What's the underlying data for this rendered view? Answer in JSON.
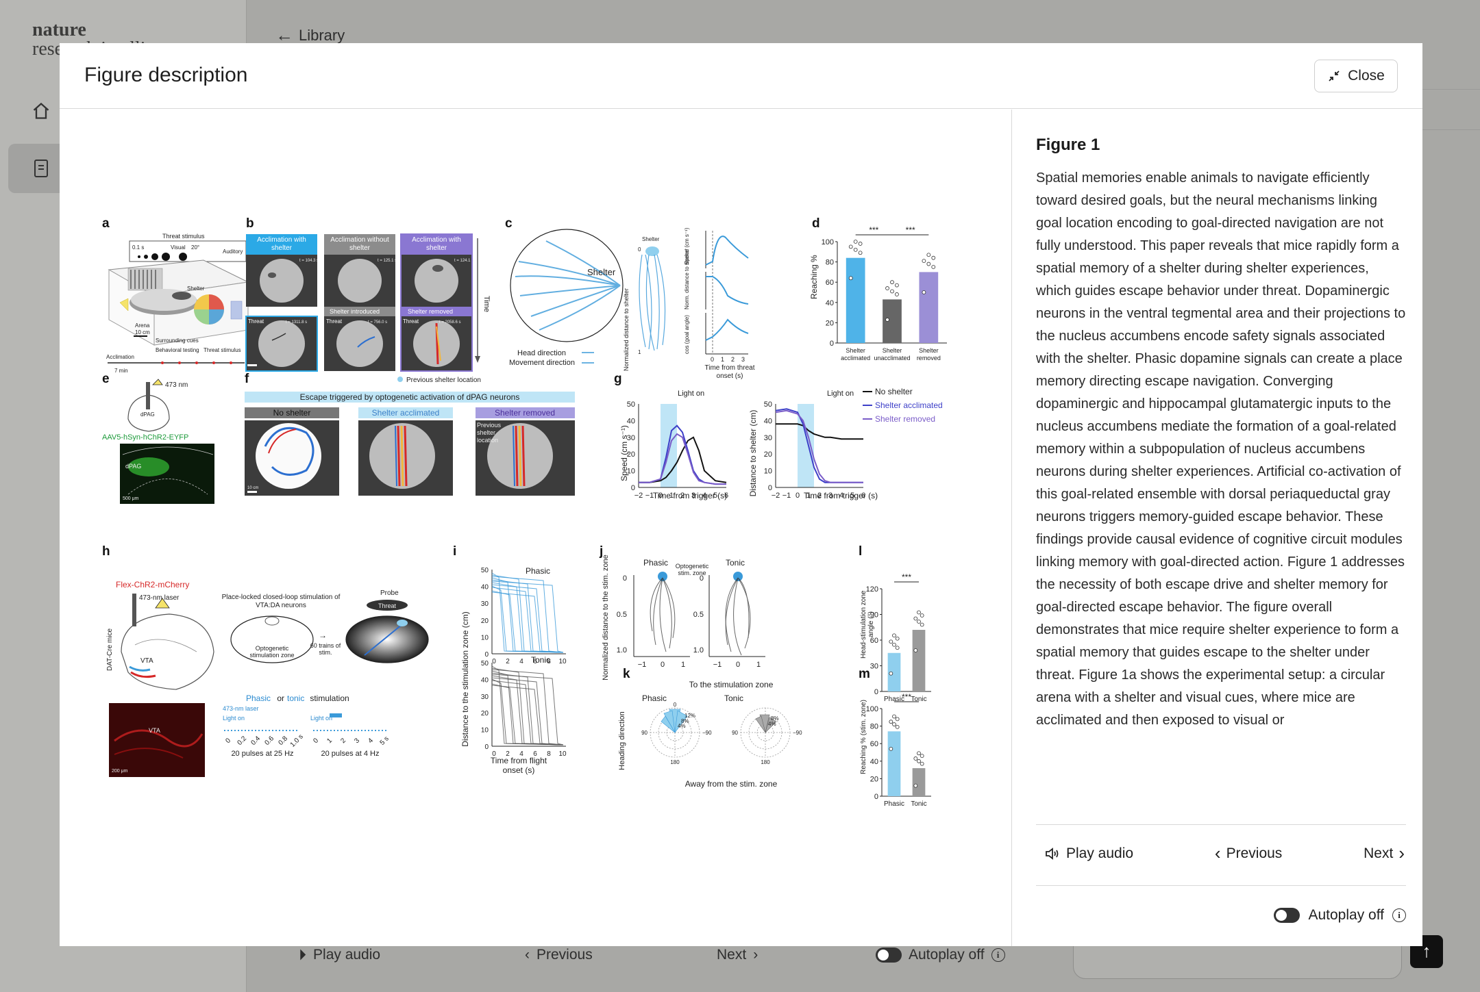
{
  "background": {
    "logo_line1": "nature",
    "logo_line2": "research intelligence",
    "back_label": "Library",
    "bottom": {
      "play_audio": "Play audio",
      "previous": "Previous",
      "next": "Next",
      "autoplay": "Autoplay off"
    }
  },
  "modal": {
    "title": "Figure description",
    "close_label": "Close",
    "figure_title": "Figure 1",
    "description": "Spatial memories enable animals to navigate efficiently toward desired goals, but the neural mechanisms linking goal location encoding to goal-directed navigation are not fully understood. This paper reveals that mice rapidly form a spatial memory of a shelter during shelter experiences, which guides escape behavior under threat. Dopaminergic neurons in the ventral tegmental area and their projections to the nucleus accumbens encode safety signals associated with the shelter. Phasic dopamine signals can create a place memory directing escape navigation. Converging dopaminergic and hippocampal glutamatergic inputs to the nucleus accumbens mediate the formation of a goal-related memory within a subpopulation of nucleus accumbens neurons during shelter experiences. Artificial co-activation of this goal-related ensemble with dorsal periaqueductal gray neurons triggers memory-guided escape behavior. These findings provide causal evidence of cognitive circuit modules linking memory with goal-directed action. Figure 1 addresses the necessity of both escape drive and shelter memory for goal-directed escape behavior. The figure overall demonstrates that mice require shelter experience to form a spatial memory that guides escape to the shelter under threat. Figure 1a shows the experimental setup: a circular arena with a shelter and visual cues, where mice are acclimated and then exposed to visual or",
    "controls": {
      "play_audio": "Play audio",
      "previous": "Previous",
      "next": "Next",
      "autoplay": "Autoplay off"
    }
  },
  "figure": {
    "panel_a": {
      "label": "a",
      "threat_stimulus": "Threat stimulus",
      "visual": "Visual",
      "auditory": "Auditory",
      "time_01": "0.1 s",
      "deg20": "20°",
      "shelter": "Shelter",
      "arena": "Arena",
      "scale": "10 cm",
      "surrounding_cues": "Surrounding cues",
      "acclimation": "Acclimation",
      "behavioral_testing": "Behavioral testing",
      "threat_stim": "Threat stimulus",
      "seven_min": "7 min"
    },
    "panel_b": {
      "label": "b",
      "col1": "Acclimation with shelter",
      "col2": "Acclimation without shelter",
      "col3": "Acclimation with shelter",
      "shelter_introduced": "Shelter introduced",
      "shelter_removed": "Shelter removed",
      "threat": "Threat",
      "time": "Time",
      "previous_location": "Previous shelter location",
      "t1": "t = 104.3 s",
      "t2": "t = 125.1 s",
      "t3": "t = 124.1 s",
      "t4": "t = 1311.8 s",
      "t5": "t = 756.0 s",
      "t6": "t = 2058.6 s",
      "scale": "10 cm",
      "speed": "Speed (cm s⁻¹)"
    },
    "panel_c": {
      "label": "c",
      "shelter": "Shelter",
      "head_direction": "Head direction",
      "movement_direction": "Movement direction",
      "y_norm_dist": "Normalized distance to shelter",
      "shelter_top": "Shelter",
      "speed_label": "Speed (cm s⁻¹)",
      "norm_label": "Norm. distance to shelter",
      "cos_label": "cos (goal angle)",
      "x_label": "Time from threat onset (s)",
      "x_ticks": [
        "0",
        "1",
        "2",
        "3"
      ]
    },
    "panel_d": {
      "label": "d",
      "y_label": "Reaching %",
      "categories": [
        "Shelter acclimated",
        "Shelter unacclimated",
        "Shelter removed"
      ],
      "sig": "***",
      "y_ticks": [
        "0",
        "20",
        "40",
        "60",
        "80",
        "100"
      ]
    },
    "panel_e": {
      "label": "e",
      "wavelength": "473 nm",
      "virus": "AAV5-hSyn-hChR2-EYFP",
      "region": "dPAG",
      "scale": "500 μm"
    },
    "panel_f": {
      "label": "f",
      "title": "Escape triggered by optogenetic activation of dPAG neurons",
      "col1": "No shelter",
      "col2": "Shelter acclimated",
      "col3": "Shelter removed",
      "prev_loc": "Previous shelter location",
      "scale": "10 cm"
    },
    "panel_g": {
      "label": "g",
      "light_on": "Light on",
      "y1": "Speed (cm s⁻¹)",
      "y2": "Distance to shelter (cm)",
      "x_label": "Time from trigger (s)",
      "legend": [
        "No shelter",
        "Shelter acclimated",
        "Shelter removed"
      ],
      "y_ticks": [
        "0",
        "10",
        "20",
        "30",
        "40",
        "50"
      ],
      "x_ticks": [
        "−2",
        "−1",
        "0",
        "1",
        "2",
        "3",
        "4",
        "5",
        "6"
      ]
    },
    "panel_h": {
      "label": "h",
      "construct": "Flex-ChR2-mCherry",
      "laser": "473-nm laser",
      "closed_loop": "Place-locked closed-loop stimulation of VTA:DA neurons",
      "probe": "Probe",
      "threat": "Threat",
      "opto_zone": "Optogenetic stimulation zone",
      "trains": "60 trains of stim.",
      "mouse": "DAT-Cre mice",
      "vta": "VTA",
      "phasic": "Phasic",
      "or": " or ",
      "tonic": "tonic",
      "stimulation": " stimulation",
      "laser2": "473-nm laser",
      "light_on": "Light on",
      "pulses1": "20 pulses at 25 Hz",
      "pulses2": "20 pulses at 4 Hz",
      "scale": "200 μm",
      "ticks1": [
        "0",
        "0.2",
        "0.4",
        "0.6",
        "0.8",
        "1.0 s"
      ],
      "ticks2": [
        "0",
        "1",
        "2",
        "3",
        "4",
        "5 s"
      ]
    },
    "panel_i": {
      "label": "i",
      "phasic": "Phasic",
      "tonic": "Tonic",
      "y_label": "Distance to the stimulation zone (cm)",
      "x_label": "Time from flight onset (s)",
      "y_ticks": [
        "0",
        "10",
        "20",
        "30",
        "40",
        "50"
      ],
      "x_ticks": [
        "0",
        "2",
        "4",
        "6",
        "8",
        "10"
      ]
    },
    "panel_j": {
      "label": "j",
      "phasic": "Phasic",
      "tonic": "Tonic",
      "opto_zone": "Optogenetic stim. zone",
      "y_label": "Normalized distance to the stim. zone",
      "y_ticks": [
        "0",
        "0.5",
        "1.0"
      ],
      "x_ticks": [
        "−1",
        "0",
        "1"
      ]
    },
    "panel_k": {
      "label": "k",
      "top": "To the stimulation zone",
      "bottom": "Away from the stim. zone",
      "phasic": "Phasic",
      "tonic": "Tonic",
      "y_label": "Heading direction",
      "pct": [
        "12%",
        "8%",
        "4%"
      ],
      "angles": [
        "0",
        "90",
        "−90",
        "180"
      ]
    },
    "panel_l": {
      "label": "l",
      "y_label": "Head-stimulation zone angle (°)",
      "sig": "***",
      "categories": [
        "Phasic",
        "Tonic"
      ],
      "y_ticks": [
        "0",
        "30",
        "60",
        "90",
        "120"
      ]
    },
    "panel_m": {
      "label": "m",
      "y_label": "Reaching % (stim. zone)",
      "sig": "***",
      "categories": [
        "Phasic",
        "Tonic"
      ],
      "y_ticks": [
        "0",
        "20",
        "40",
        "60",
        "80",
        "100"
      ]
    }
  },
  "chart_data": [
    {
      "type": "bar",
      "panel": "d",
      "ylabel": "Reaching %",
      "categories": [
        "Shelter acclimated",
        "Shelter unacclimated",
        "Shelter removed"
      ],
      "values": [
        84,
        43,
        70
      ],
      "ylim": [
        0,
        100
      ],
      "colors": [
        "#4fb3e8",
        "#666666",
        "#9b8fd6"
      ]
    },
    {
      "type": "bar",
      "panel": "l",
      "ylabel": "Head-stimulation zone angle (°)",
      "categories": [
        "Phasic",
        "Tonic"
      ],
      "values": [
        45,
        72
      ],
      "ylim": [
        0,
        120
      ],
      "colors": [
        "#8fcfee",
        "#9a9a9a"
      ]
    },
    {
      "type": "bar",
      "panel": "m",
      "ylabel": "Reaching % (stim. zone)",
      "categories": [
        "Phasic",
        "Tonic"
      ],
      "values": [
        74,
        32
      ],
      "ylim": [
        0,
        100
      ],
      "colors": [
        "#8fcfee",
        "#9a9a9a"
      ]
    },
    {
      "type": "line",
      "panel": "g-speed",
      "xlabel": "Time from trigger (s)",
      "ylabel": "Speed (cm s⁻¹)",
      "xlim": [
        -2,
        6
      ],
      "ylim": [
        0,
        50
      ],
      "x": [
        -2,
        -1,
        0,
        0.5,
        1,
        1.5,
        2,
        2.5,
        3,
        3.5,
        4,
        5,
        6
      ],
      "series": [
        {
          "name": "No shelter",
          "values": [
            3,
            3,
            4,
            6,
            10,
            15,
            22,
            28,
            30,
            22,
            10,
            4,
            3
          ]
        },
        {
          "name": "Shelter acclimated",
          "values": [
            3,
            3,
            5,
            18,
            34,
            37,
            33,
            22,
            10,
            5,
            3,
            2,
            2
          ]
        },
        {
          "name": "Shelter removed",
          "values": [
            3,
            3,
            5,
            15,
            28,
            32,
            30,
            20,
            9,
            4,
            3,
            2,
            2
          ]
        }
      ]
    },
    {
      "type": "line",
      "panel": "g-distance",
      "xlabel": "Time from trigger (s)",
      "ylabel": "Distance to shelter (cm)",
      "xlim": [
        -2,
        6
      ],
      "ylim": [
        0,
        50
      ],
      "x": [
        -2,
        -1,
        0,
        0.5,
        1,
        1.5,
        2,
        2.5,
        3,
        4,
        5,
        6
      ],
      "series": [
        {
          "name": "No shelter",
          "values": [
            38,
            38,
            38,
            37,
            34,
            32,
            31,
            30,
            30,
            29,
            29,
            29
          ]
        },
        {
          "name": "Shelter acclimated",
          "values": [
            46,
            47,
            45,
            38,
            25,
            12,
            5,
            3,
            3,
            3,
            3,
            3
          ]
        },
        {
          "name": "Shelter removed",
          "values": [
            45,
            46,
            44,
            40,
            30,
            17,
            8,
            4,
            3,
            3,
            3,
            3
          ]
        }
      ]
    }
  ],
  "colors": {
    "blue": "#3a9ad9",
    "light_blue": "#8fcfee",
    "purple": "#7a5cc8",
    "lavender": "#a79ee0",
    "grey": "#666666",
    "red": "#d62828",
    "green": "#1c9a3a"
  },
  "icons": {
    "close": "collapse-arrows-icon",
    "audio": "speaker-icon",
    "prev": "chevron-left-icon",
    "next": "chevron-right-icon",
    "info": "info-icon",
    "back": "arrow-left-icon",
    "home": "home-icon",
    "doc": "document-icon",
    "send": "arrow-up-icon"
  }
}
